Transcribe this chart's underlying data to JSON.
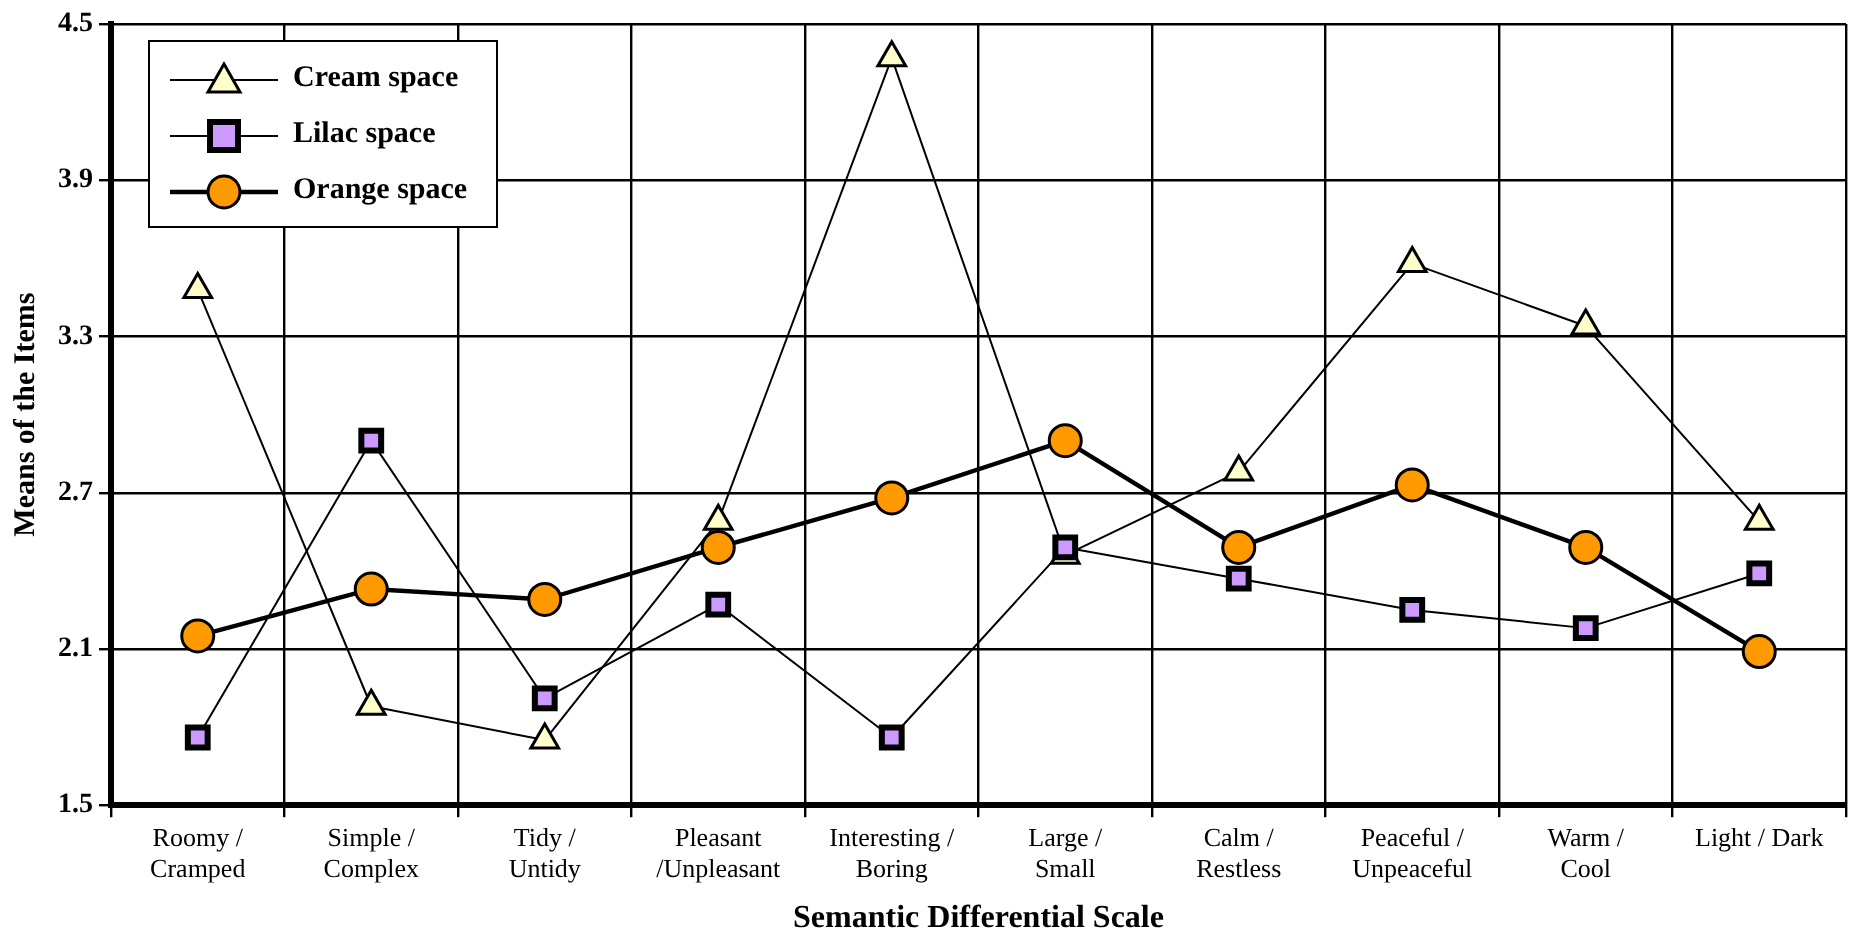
{
  "chart_data": {
    "type": "line",
    "xlabel": "Semantic Differential Scale",
    "ylabel": "Means of the Items",
    "categories": [
      "Roomy /\nCramped",
      "Simple /\nComplex",
      "Tidy /\nUntidy",
      "Pleasant\n/Unpleasant",
      "Interesting /\nBoring",
      "Large /\nSmall",
      "Calm /\nRestless",
      "Peaceful /\nUnpeaceful",
      "Warm /\nCool",
      "Light / Dark"
    ],
    "series": [
      {
        "name": "Cream space",
        "color": "#ffffcc",
        "marker": "triangle",
        "values": [
          3.48,
          1.88,
          1.75,
          2.59,
          4.37,
          2.46,
          2.78,
          3.58,
          3.34,
          2.59
        ]
      },
      {
        "name": "Lilac space",
        "color": "#cc99ff",
        "marker": "square",
        "values": [
          1.76,
          2.9,
          1.91,
          2.27,
          1.76,
          2.49,
          2.37,
          2.25,
          2.18,
          2.39
        ]
      },
      {
        "name": "Orange space",
        "color": "#ff9900",
        "marker": "circle",
        "values": [
          2.15,
          2.33,
          2.29,
          2.49,
          2.68,
          2.9,
          2.49,
          2.73,
          2.49,
          2.09
        ]
      }
    ],
    "ylim": [
      1.5,
      4.5
    ],
    "yticks": [
      1.5,
      2.1,
      2.7,
      3.3,
      3.9,
      4.5
    ],
    "grid": true,
    "legend": "top left",
    "line_style": "solid"
  }
}
